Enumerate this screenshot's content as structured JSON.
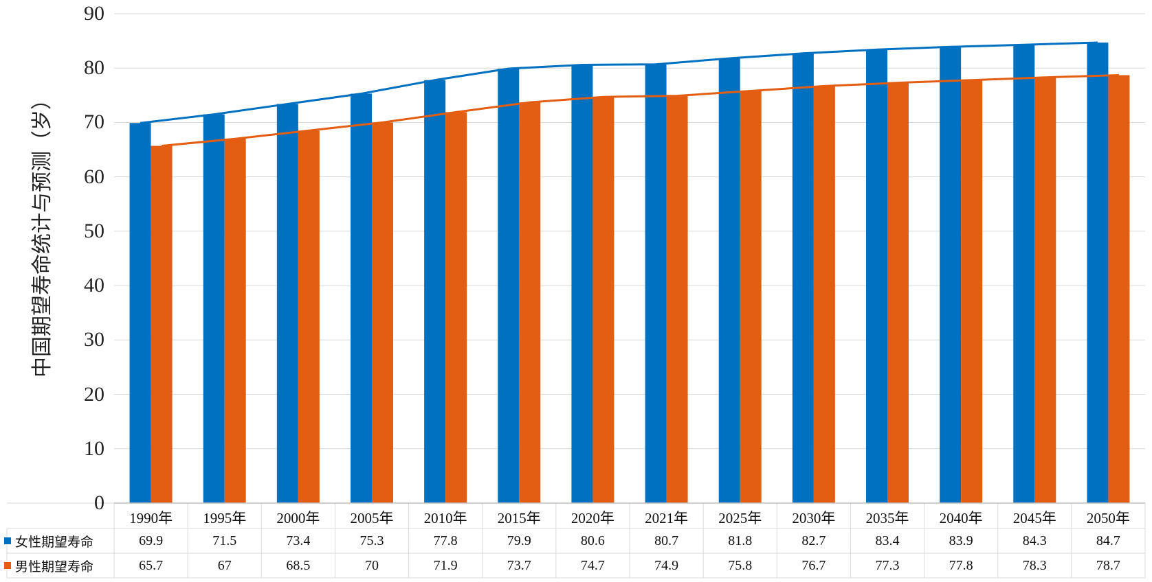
{
  "chart_data": {
    "type": "bar",
    "ylabel": "中国期望寿命统计与预测（岁）",
    "ylim": [
      0,
      90
    ],
    "yticks": [
      0,
      10,
      20,
      30,
      40,
      50,
      60,
      70,
      80,
      90
    ],
    "grid": true,
    "legend_placement": "data-table-left",
    "categories": [
      "1990年",
      "1995年",
      "2000年",
      "2005年",
      "2010年",
      "2015年",
      "2020年",
      "2021年",
      "2025年",
      "2030年",
      "2035年",
      "2040年",
      "2045年",
      "2050年"
    ],
    "series": [
      {
        "name": "女性期望寿命",
        "color": "#0070c0",
        "values": [
          69.9,
          71.5,
          73.4,
          75.3,
          77.8,
          79.9,
          80.6,
          80.7,
          81.8,
          82.7,
          83.4,
          83.9,
          84.3,
          84.7
        ],
        "labels": [
          "69.9",
          "71.5",
          "73.4",
          "75.3",
          "77.8",
          "79.9",
          "80.6",
          "80.7",
          "81.8",
          "82.7",
          "83.4",
          "83.9",
          "84.3",
          "84.7"
        ]
      },
      {
        "name": "男性期望寿命",
        "color": "#e35d12",
        "values": [
          65.7,
          67,
          68.5,
          70,
          71.9,
          73.7,
          74.7,
          74.9,
          75.8,
          76.7,
          77.3,
          77.8,
          78.3,
          78.7
        ],
        "labels": [
          "65.7",
          "67",
          "68.5",
          "70",
          "71.9",
          "73.7",
          "74.7",
          "74.9",
          "75.8",
          "76.7",
          "77.3",
          "77.8",
          "78.3",
          "78.7"
        ]
      }
    ],
    "trendlines": true
  }
}
